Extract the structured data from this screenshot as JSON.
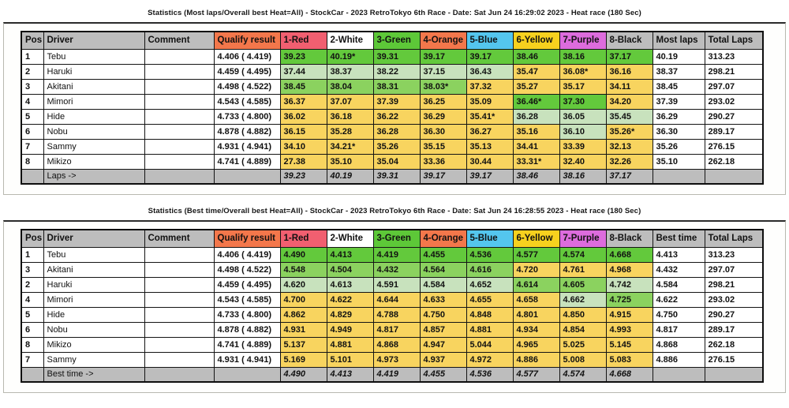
{
  "colors": {
    "header_gray": "#bdbdbd",
    "header_orange": "#f3774b",
    "header_red": "#f15f70",
    "header_green": "#5dc838",
    "header_blue": "#54c6ee",
    "header_yellow": "#f7d11e",
    "header_purple": "#dd6cdd",
    "cell_best_green": "#63c93c",
    "cell_mid_green": "#8bd25f",
    "cell_pale_green": "#c8e2bd",
    "cell_yellow": "#f8d45f"
  },
  "tables": [
    {
      "title": "Statistics (Most laps/Overall best Heat=All) - StockCar - 2023 RetroTokyo 6th Race - Date: Sat Jun 24 16:29:02 2023 - Heat race (180 Sec)",
      "columns": [
        {
          "label": "Pos",
          "bg": "gray"
        },
        {
          "label": "Driver",
          "bg": "gray"
        },
        {
          "label": "Comment",
          "bg": "gray"
        },
        {
          "label": "Qualify result",
          "bg": "orange"
        },
        {
          "label": "1-Red",
          "bg": "red"
        },
        {
          "label": "2-White",
          "bg": "white"
        },
        {
          "label": "3-Green",
          "bg": "green"
        },
        {
          "label": "4-Orange",
          "bg": "orange"
        },
        {
          "label": "5-Blue",
          "bg": "blue"
        },
        {
          "label": "6-Yellow",
          "bg": "yellow"
        },
        {
          "label": "7-Purple",
          "bg": "purple"
        },
        {
          "label": "8-Black",
          "bg": "gray"
        },
        {
          "label": "Most laps",
          "bg": "gray"
        },
        {
          "label": "Total Laps",
          "bg": "gray"
        }
      ],
      "rows": [
        {
          "pos": "1",
          "driver": "Tebu",
          "comment": "",
          "qualify": "4.406 ( 4.419)",
          "qualify_bold": true,
          "heats": [
            {
              "v": "39.23",
              "c": "g"
            },
            {
              "v": "40.19*",
              "c": "g"
            },
            {
              "v": "39.31",
              "c": "g"
            },
            {
              "v": "39.17",
              "c": "g"
            },
            {
              "v": "39.17",
              "c": "g"
            },
            {
              "v": "38.46",
              "c": "g"
            },
            {
              "v": "38.16",
              "c": "g"
            },
            {
              "v": "37.17",
              "c": "g"
            }
          ],
          "result": "40.19",
          "result_bold": true,
          "total": "313.23",
          "total_bold": true
        },
        {
          "pos": "2",
          "driver": "Haruki",
          "comment": "",
          "qualify": "4.459 ( 4.495)",
          "qualify_bold": false,
          "heats": [
            {
              "v": "37.44",
              "c": "p"
            },
            {
              "v": "38.37",
              "c": "p"
            },
            {
              "v": "38.22",
              "c": "p"
            },
            {
              "v": "37.15",
              "c": "p"
            },
            {
              "v": "36.43",
              "c": "p"
            },
            {
              "v": "35.47",
              "c": "y"
            },
            {
              "v": "36.08*",
              "c": "y"
            },
            {
              "v": "36.16",
              "c": "y"
            }
          ],
          "result": "38.37",
          "result_bold": false,
          "total": "298.21",
          "total_bold": false
        },
        {
          "pos": "3",
          "driver": "Akitani",
          "comment": "",
          "qualify": "4.498 ( 4.522)",
          "qualify_bold": false,
          "heats": [
            {
              "v": "38.45",
              "c": "m"
            },
            {
              "v": "38.04",
              "c": "m"
            },
            {
              "v": "38.31",
              "c": "m"
            },
            {
              "v": "38.03*",
              "c": "m"
            },
            {
              "v": "37.32",
              "c": "y"
            },
            {
              "v": "35.27",
              "c": "y"
            },
            {
              "v": "35.17",
              "c": "y"
            },
            {
              "v": "34.11",
              "c": "y"
            }
          ],
          "result": "38.45",
          "result_bold": false,
          "total": "297.07",
          "total_bold": false
        },
        {
          "pos": "4",
          "driver": "Mimori",
          "comment": "",
          "qualify": "4.543 ( 4.585)",
          "qualify_bold": false,
          "heats": [
            {
              "v": "36.37",
              "c": "y"
            },
            {
              "v": "37.07",
              "c": "y"
            },
            {
              "v": "37.39",
              "c": "y"
            },
            {
              "v": "36.25",
              "c": "y"
            },
            {
              "v": "35.09",
              "c": "y"
            },
            {
              "v": "36.46*",
              "c": "g"
            },
            {
              "v": "37.30",
              "c": "g"
            },
            {
              "v": "34.20",
              "c": "y"
            }
          ],
          "result": "37.39",
          "result_bold": false,
          "total": "293.02",
          "total_bold": false
        },
        {
          "pos": "5",
          "driver": "Hide",
          "comment": "",
          "qualify": "4.733 ( 4.800)",
          "qualify_bold": false,
          "heats": [
            {
              "v": "36.02",
              "c": "y"
            },
            {
              "v": "36.18",
              "c": "y"
            },
            {
              "v": "36.22",
              "c": "y"
            },
            {
              "v": "36.29",
              "c": "y"
            },
            {
              "v": "35.41*",
              "c": "y"
            },
            {
              "v": "36.28",
              "c": "p"
            },
            {
              "v": "36.05",
              "c": "p"
            },
            {
              "v": "35.45",
              "c": "p"
            }
          ],
          "result": "36.29",
          "result_bold": false,
          "total": "290.27",
          "total_bold": false
        },
        {
          "pos": "6",
          "driver": "Nobu",
          "comment": "",
          "qualify": "4.878 ( 4.882)",
          "qualify_bold": false,
          "heats": [
            {
              "v": "36.15",
              "c": "y"
            },
            {
              "v": "35.28",
              "c": "y"
            },
            {
              "v": "36.28",
              "c": "y"
            },
            {
              "v": "36.30",
              "c": "y"
            },
            {
              "v": "36.27",
              "c": "y"
            },
            {
              "v": "35.16",
              "c": "y"
            },
            {
              "v": "36.10",
              "c": "p"
            },
            {
              "v": "35.26*",
              "c": "y"
            }
          ],
          "result": "36.30",
          "result_bold": false,
          "total": "289.17",
          "total_bold": false
        },
        {
          "pos": "7",
          "driver": "Sammy",
          "comment": "",
          "qualify": "4.931 ( 4.941)",
          "qualify_bold": false,
          "heats": [
            {
              "v": "34.10",
              "c": "y"
            },
            {
              "v": "34.21*",
              "c": "y"
            },
            {
              "v": "35.26",
              "c": "y"
            },
            {
              "v": "35.15",
              "c": "y"
            },
            {
              "v": "35.13",
              "c": "y"
            },
            {
              "v": "34.41",
              "c": "y"
            },
            {
              "v": "33.39",
              "c": "y"
            },
            {
              "v": "32.13",
              "c": "y"
            }
          ],
          "result": "35.26",
          "result_bold": false,
          "total": "276.15",
          "total_bold": false
        },
        {
          "pos": "8",
          "driver": "Mikizo",
          "comment": "",
          "qualify": "4.741 ( 4.889)",
          "qualify_bold": false,
          "heats": [
            {
              "v": "27.38",
              "c": "y"
            },
            {
              "v": "35.10",
              "c": "y"
            },
            {
              "v": "35.04",
              "c": "y"
            },
            {
              "v": "33.36",
              "c": "y"
            },
            {
              "v": "30.44",
              "c": "y"
            },
            {
              "v": "33.31*",
              "c": "y"
            },
            {
              "v": "32.40",
              "c": "y"
            },
            {
              "v": "32.26",
              "c": "y"
            }
          ],
          "result": "35.10",
          "result_bold": false,
          "total": "262.18",
          "total_bold": false
        }
      ],
      "footer": {
        "label": "Laps ->",
        "values": [
          "39.23",
          "40.19",
          "39.31",
          "39.17",
          "39.17",
          "38.46",
          "38.16",
          "37.17"
        ]
      }
    },
    {
      "title": "Statistics (Best time/Overall best Heat=All) - StockCar - 2023 RetroTokyo 6th Race - Date: Sat Jun 24 16:28:55 2023 - Heat race (180 Sec)",
      "columns": [
        {
          "label": "Pos",
          "bg": "gray"
        },
        {
          "label": "Driver",
          "bg": "gray"
        },
        {
          "label": "Comment",
          "bg": "gray"
        },
        {
          "label": "Qualify result",
          "bg": "orange"
        },
        {
          "label": "1-Red",
          "bg": "red"
        },
        {
          "label": "2-White",
          "bg": "white"
        },
        {
          "label": "3-Green",
          "bg": "green"
        },
        {
          "label": "4-Orange",
          "bg": "orange"
        },
        {
          "label": "5-Blue",
          "bg": "blue"
        },
        {
          "label": "6-Yellow",
          "bg": "yellow"
        },
        {
          "label": "7-Purple",
          "bg": "purple"
        },
        {
          "label": "8-Black",
          "bg": "gray"
        },
        {
          "label": "Best time",
          "bg": "gray"
        },
        {
          "label": "Total Laps",
          "bg": "gray"
        }
      ],
      "rows": [
        {
          "pos": "1",
          "driver": "Tebu",
          "comment": "",
          "qualify": "4.406 ( 4.419)",
          "qualify_bold": true,
          "heats": [
            {
              "v": "4.490",
              "c": "g"
            },
            {
              "v": "4.413",
              "c": "g"
            },
            {
              "v": "4.419",
              "c": "g"
            },
            {
              "v": "4.455",
              "c": "g"
            },
            {
              "v": "4.536",
              "c": "g"
            },
            {
              "v": "4.577",
              "c": "g"
            },
            {
              "v": "4.574",
              "c": "g"
            },
            {
              "v": "4.668",
              "c": "g"
            }
          ],
          "result": "4.413",
          "result_bold": true,
          "total": "313.23",
          "total_bold": true
        },
        {
          "pos": "3",
          "driver": "Akitani",
          "comment": "",
          "qualify": "4.498 ( 4.522)",
          "qualify_bold": false,
          "heats": [
            {
              "v": "4.548",
              "c": "m"
            },
            {
              "v": "4.504",
              "c": "m"
            },
            {
              "v": "4.432",
              "c": "m"
            },
            {
              "v": "4.564",
              "c": "m"
            },
            {
              "v": "4.616",
              "c": "m"
            },
            {
              "v": "4.720",
              "c": "y"
            },
            {
              "v": "4.761",
              "c": "y"
            },
            {
              "v": "4.968",
              "c": "y"
            }
          ],
          "result": "4.432",
          "result_bold": false,
          "total": "297.07",
          "total_bold": false
        },
        {
          "pos": "2",
          "driver": "Haruki",
          "comment": "",
          "qualify": "4.459 ( 4.495)",
          "qualify_bold": false,
          "heats": [
            {
              "v": "4.620",
              "c": "p"
            },
            {
              "v": "4.613",
              "c": "p"
            },
            {
              "v": "4.591",
              "c": "p"
            },
            {
              "v": "4.584",
              "c": "p"
            },
            {
              "v": "4.652",
              "c": "p"
            },
            {
              "v": "4.614",
              "c": "m"
            },
            {
              "v": "4.605",
              "c": "m"
            },
            {
              "v": "4.742",
              "c": "p"
            }
          ],
          "result": "4.584",
          "result_bold": false,
          "total": "298.21",
          "total_bold": false
        },
        {
          "pos": "4",
          "driver": "Mimori",
          "comment": "",
          "qualify": "4.543 ( 4.585)",
          "qualify_bold": false,
          "heats": [
            {
              "v": "4.700",
              "c": "y"
            },
            {
              "v": "4.622",
              "c": "y"
            },
            {
              "v": "4.644",
              "c": "y"
            },
            {
              "v": "4.633",
              "c": "y"
            },
            {
              "v": "4.655",
              "c": "y"
            },
            {
              "v": "4.658",
              "c": "y"
            },
            {
              "v": "4.662",
              "c": "p"
            },
            {
              "v": "4.725",
              "c": "m"
            }
          ],
          "result": "4.622",
          "result_bold": false,
          "total": "293.02",
          "total_bold": false
        },
        {
          "pos": "5",
          "driver": "Hide",
          "comment": "",
          "qualify": "4.733 ( 4.800)",
          "qualify_bold": false,
          "heats": [
            {
              "v": "4.862",
              "c": "y"
            },
            {
              "v": "4.829",
              "c": "y"
            },
            {
              "v": "4.788",
              "c": "y"
            },
            {
              "v": "4.750",
              "c": "y"
            },
            {
              "v": "4.848",
              "c": "y"
            },
            {
              "v": "4.801",
              "c": "y"
            },
            {
              "v": "4.850",
              "c": "y"
            },
            {
              "v": "4.915",
              "c": "y"
            }
          ],
          "result": "4.750",
          "result_bold": false,
          "total": "290.27",
          "total_bold": false
        },
        {
          "pos": "6",
          "driver": "Nobu",
          "comment": "",
          "qualify": "4.878 ( 4.882)",
          "qualify_bold": false,
          "heats": [
            {
              "v": "4.931",
              "c": "y"
            },
            {
              "v": "4.949",
              "c": "y"
            },
            {
              "v": "4.817",
              "c": "y"
            },
            {
              "v": "4.857",
              "c": "y"
            },
            {
              "v": "4.881",
              "c": "y"
            },
            {
              "v": "4.934",
              "c": "y"
            },
            {
              "v": "4.854",
              "c": "y"
            },
            {
              "v": "4.993",
              "c": "y"
            }
          ],
          "result": "4.817",
          "result_bold": false,
          "total": "289.17",
          "total_bold": false
        },
        {
          "pos": "8",
          "driver": "Mikizo",
          "comment": "",
          "qualify": "4.741 ( 4.889)",
          "qualify_bold": false,
          "heats": [
            {
              "v": "5.137",
              "c": "y"
            },
            {
              "v": "4.881",
              "c": "y"
            },
            {
              "v": "4.868",
              "c": "y"
            },
            {
              "v": "4.947",
              "c": "y"
            },
            {
              "v": "5.044",
              "c": "y"
            },
            {
              "v": "4.965",
              "c": "y"
            },
            {
              "v": "5.025",
              "c": "y"
            },
            {
              "v": "5.145",
              "c": "y"
            }
          ],
          "result": "4.868",
          "result_bold": false,
          "total": "262.18",
          "total_bold": false
        },
        {
          "pos": "7",
          "driver": "Sammy",
          "comment": "",
          "qualify": "4.931 ( 4.941)",
          "qualify_bold": false,
          "heats": [
            {
              "v": "5.169",
              "c": "y"
            },
            {
              "v": "5.101",
              "c": "y"
            },
            {
              "v": "4.973",
              "c": "y"
            },
            {
              "v": "4.937",
              "c": "y"
            },
            {
              "v": "4.972",
              "c": "y"
            },
            {
              "v": "4.886",
              "c": "y"
            },
            {
              "v": "5.008",
              "c": "y"
            },
            {
              "v": "5.083",
              "c": "y"
            }
          ],
          "result": "4.886",
          "result_bold": false,
          "total": "276.15",
          "total_bold": false
        }
      ],
      "footer": {
        "label": "Best time ->",
        "values": [
          "4.490",
          "4.413",
          "4.419",
          "4.455",
          "4.536",
          "4.577",
          "4.574",
          "4.668"
        ]
      }
    }
  ]
}
